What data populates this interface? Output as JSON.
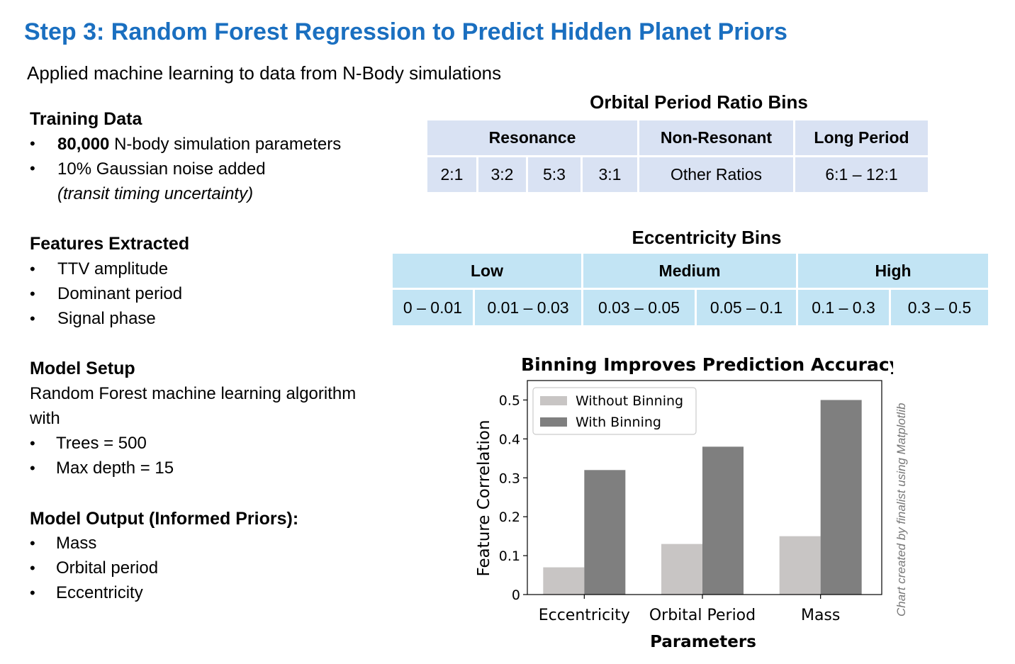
{
  "title": "Step 3: Random Forest Regression to Predict Hidden Planet Priors",
  "subtitle": "Applied machine learning to data from N-Body simulations",
  "sections": {
    "training": {
      "heading": "Training Data",
      "b1_bold": "80,000",
      "b1_rest": " N-body simulation parameters",
      "b2": "10% Gaussian noise added",
      "b2_note": "(transit timing uncertainty)"
    },
    "features": {
      "heading": "Features Extracted",
      "items": [
        "TTV amplitude",
        "Dominant period",
        "Signal phase"
      ]
    },
    "model": {
      "heading": "Model Setup",
      "line1": "Random Forest machine learning algorithm",
      "line2": "with",
      "items": [
        "Trees = 500",
        "Max depth = 15"
      ]
    },
    "output": {
      "heading": "Model Output (Informed Priors):",
      "items": [
        "Mass",
        "Orbital period",
        "Eccentricity"
      ]
    },
    "bullet_char": "•"
  },
  "period_table": {
    "title": "Orbital Period Ratio Bins",
    "headers": [
      "Resonance",
      "Non-Resonant",
      "Long Period"
    ],
    "cells": [
      "2:1",
      "3:2",
      "5:3",
      "3:1",
      "Other Ratios",
      "6:1 – 12:1"
    ]
  },
  "ecc_table": {
    "title": "Eccentricity Bins",
    "headers": [
      "Low",
      "Medium",
      "High"
    ],
    "cells": [
      "0 – 0.01",
      "0.01 – 0.03",
      "0.03 – 0.05",
      "0.05 – 0.1",
      "0.1 – 0.3",
      "0.3 – 0.5"
    ]
  },
  "chart_data": {
    "type": "bar",
    "title": "Binning Improves Prediction Accuracy",
    "xlabel": "Parameters",
    "ylabel": "Feature Correlation",
    "categories": [
      "Eccentricity",
      "Orbital Period",
      "Mass"
    ],
    "series": [
      {
        "name": "Without Binning",
        "values": [
          0.07,
          0.13,
          0.15
        ],
        "color": "#c8c5c4"
      },
      {
        "name": "With Binning",
        "values": [
          0.32,
          0.38,
          0.5
        ],
        "color": "#7f7f7f"
      }
    ],
    "ylim": [
      0,
      0.55
    ],
    "yticks": [
      0,
      0.1,
      0.2,
      0.3,
      0.4,
      0.5
    ],
    "ytick_labels": [
      "0",
      "0.1",
      "0.2",
      "0.3",
      "0.4",
      "0.5"
    ],
    "legend_position": "top-left",
    "grid": false
  },
  "credit": "Chart created by finalist using Matplotlib"
}
